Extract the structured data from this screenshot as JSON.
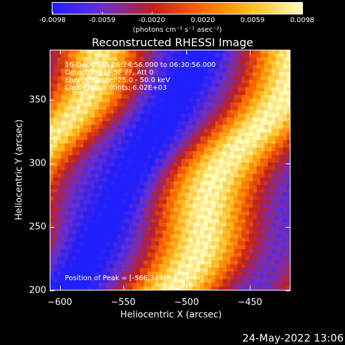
{
  "colorbar": {
    "ticks": [
      "-0.0098",
      "-0.0059",
      "-0.0020",
      "0.0020",
      "0.0059",
      "0.0098"
    ],
    "tick_values": [
      -0.0098,
      -0.0059,
      -0.002,
      0.002,
      0.0059,
      0.0098
    ],
    "unit_label": "(photons cm⁻² s⁻¹ asec⁻²)",
    "colormap": [
      "#2020ff",
      "#6a30d0",
      "#c02020",
      "#ff6a00",
      "#ffc020",
      "#ffffc0"
    ]
  },
  "chart_data": {
    "type": "heatmap",
    "title": "Reconstructed RHESSI Image",
    "xlabel": "Heliocentric X (arcsec)",
    "ylabel": "Heliocentric Y (arcsec)",
    "xlim": [
      -608,
      -418
    ],
    "ylim": [
      200,
      390
    ],
    "x_ticks": [
      -600,
      -550,
      -500,
      -450
    ],
    "y_ticks": [
      200,
      250,
      300,
      350
    ],
    "x_tick_labels": [
      "−600",
      "−550",
      "−500",
      "−450"
    ],
    "y_tick_labels": [
      "200",
      "250",
      "300",
      "350"
    ],
    "annotations": [
      "16-Dec-2015 06:24:56.000 to 06:30:56.000",
      "Detectors: 1F 5F 7F, Att 0",
      "Energy Range: 25.0 - 50.0 keV",
      "Clean    Total counts: 6.02E+03"
    ],
    "peak_label": "Position of Peak = [-566,345]",
    "peak": [
      -566,
      345
    ]
  },
  "footer": {
    "date": "24-May-2022 13:06"
  }
}
